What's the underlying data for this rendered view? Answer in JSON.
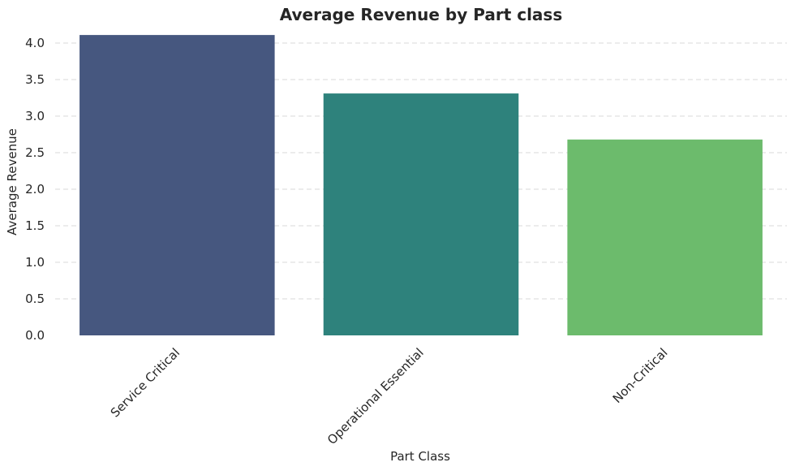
{
  "chart_data": {
    "type": "bar",
    "title": "Average Revenue by Part class",
    "xlabel": "Part Class",
    "ylabel": "Average Revenue",
    "categories": [
      "Service Critical",
      "Operational Essential",
      "Non-Critical"
    ],
    "values": [
      4.11,
      3.31,
      2.68
    ],
    "colors": [
      "#46577f",
      "#2e827c",
      "#6cbb6c"
    ],
    "ylim": [
      0,
      4.2
    ],
    "yticks": [
      "0.0",
      "0.5",
      "1.0",
      "1.5",
      "2.0",
      "2.5",
      "3.0",
      "3.5",
      "4.0"
    ],
    "grid": true,
    "grid_axis": "y",
    "legend": false
  }
}
